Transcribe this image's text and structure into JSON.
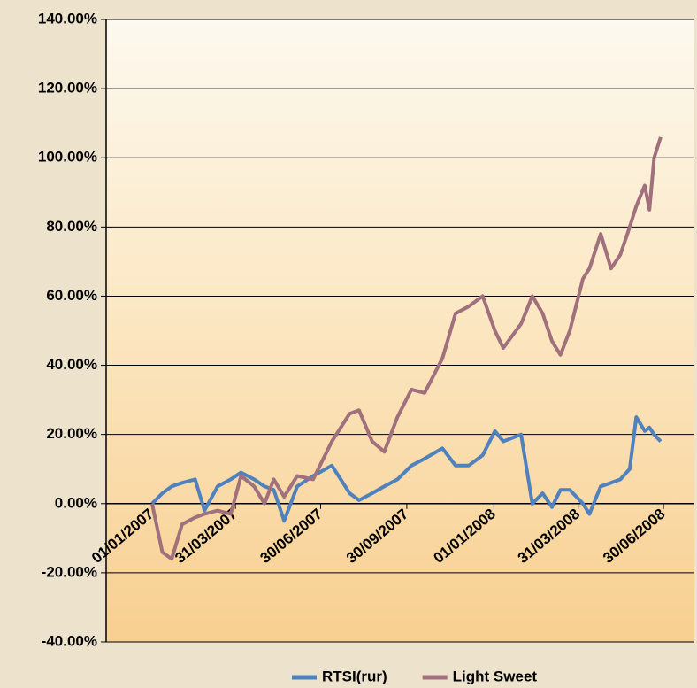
{
  "chart_data": {
    "type": "line",
    "x": [
      "2007-01-01",
      "2007-01-12",
      "2007-01-22",
      "2007-02-02",
      "2007-02-16",
      "2007-02-26",
      "2007-03-12",
      "2007-03-26",
      "2007-04-06",
      "2007-04-20",
      "2007-05-01",
      "2007-05-11",
      "2007-05-22",
      "2007-06-05",
      "2007-06-22",
      "2007-07-12",
      "2007-07-31",
      "2007-08-10",
      "2007-08-24",
      "2007-09-06",
      "2007-09-20",
      "2007-10-05",
      "2007-10-19",
      "2007-11-07",
      "2007-11-21",
      "2007-12-05",
      "2007-12-20",
      "2008-01-02",
      "2008-01-11",
      "2008-01-30",
      "2008-02-11",
      "2008-02-22",
      "2008-03-03",
      "2008-03-12",
      "2008-03-22",
      "2008-04-05",
      "2008-04-12",
      "2008-04-24",
      "2008-05-05",
      "2008-05-15",
      "2008-05-25",
      "2008-06-01",
      "2008-06-10",
      "2008-06-15",
      "2008-06-20",
      "2008-06-27"
    ],
    "series": [
      {
        "name": "RTSI(rur)",
        "color": "#4f81bd",
        "values": [
          0,
          3,
          5,
          6,
          7,
          -2,
          5,
          7,
          9,
          7,
          5,
          4,
          -5,
          5,
          8,
          11,
          3,
          1,
          3,
          5,
          7,
          11,
          13,
          16,
          11,
          11,
          14,
          21,
          18,
          20,
          0,
          3,
          -1,
          4,
          4,
          0,
          -3,
          5,
          6,
          7,
          10,
          25,
          21,
          22,
          20,
          18
        ]
      },
      {
        "name": "Light Sweet",
        "color": "#a0707c",
        "values": [
          0,
          -14,
          -16,
          -6,
          -4,
          -3,
          -2,
          -3,
          8,
          5,
          0,
          7,
          2,
          8,
          7,
          18,
          26,
          27,
          18,
          15,
          25,
          33,
          32,
          42,
          55,
          57,
          60,
          50,
          45,
          52,
          60,
          55,
          47,
          43,
          50,
          65,
          68,
          78,
          68,
          72,
          80,
          86,
          92,
          85,
          100,
          106
        ]
      }
    ],
    "xlim": [
      "2006-11-13",
      "2008-08-02"
    ],
    "xticks": [
      {
        "value": "2007-01-01",
        "label": "01/01/2007"
      },
      {
        "value": "2007-03-31",
        "label": "31/03/2007"
      },
      {
        "value": "2007-06-30",
        "label": "30/06/2007"
      },
      {
        "value": "2007-09-30",
        "label": "30/09/2007"
      },
      {
        "value": "2008-01-01",
        "label": "01/01/2008"
      },
      {
        "value": "2008-03-31",
        "label": "31/03/2008"
      },
      {
        "value": "2008-06-30",
        "label": "30/06/2008"
      }
    ],
    "ylim": [
      -40,
      140
    ],
    "yticks": [
      {
        "value": -40,
        "label": "-40.00%"
      },
      {
        "value": -20,
        "label": "-20.00%"
      },
      {
        "value": 0,
        "label": "0.00%"
      },
      {
        "value": 20,
        "label": "20.00%"
      },
      {
        "value": 40,
        "label": "40.00%"
      },
      {
        "value": 60,
        "label": "60.00%"
      },
      {
        "value": 80,
        "label": "80.00%"
      },
      {
        "value": 100,
        "label": "100.00%"
      },
      {
        "value": 120,
        "label": "120.00%"
      },
      {
        "value": 140,
        "label": "140.00%"
      }
    ],
    "grid": true,
    "legend": "bottom"
  }
}
